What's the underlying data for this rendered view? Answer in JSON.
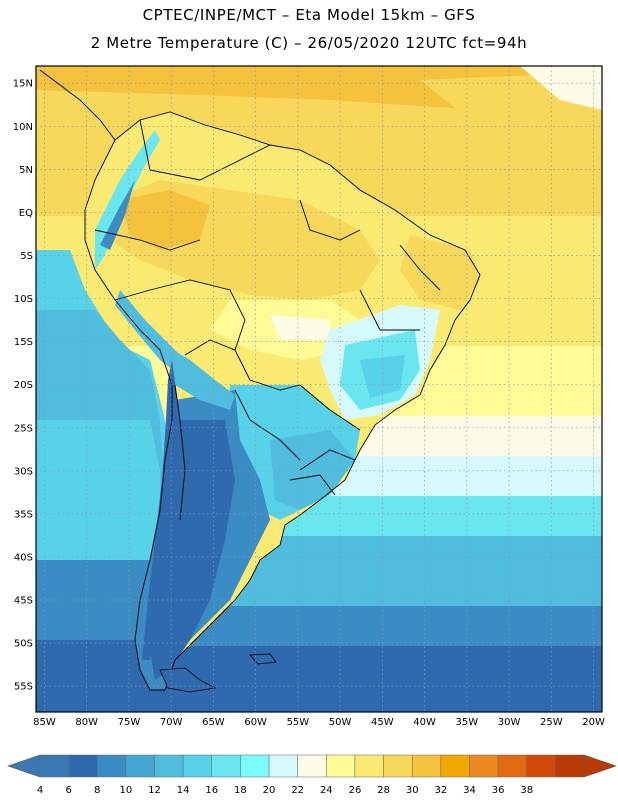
{
  "header": {
    "line1": "CPTEC/INPE/MCT –   Eta Model 15km – GFS",
    "line2": "2 Metre Temperature (C) – 26/05/2020 12UTC fct=94h"
  },
  "map": {
    "lon_range": [
      -86,
      -19
    ],
    "lat_range": [
      -58,
      17
    ],
    "lat_ticks": [
      "15N",
      "10N",
      "5N",
      "EQ",
      "5S",
      "10S",
      "15S",
      "20S",
      "25S",
      "30S",
      "35S",
      "40S",
      "45S",
      "50S",
      "55S"
    ],
    "lat_values": [
      15,
      10,
      5,
      0,
      -5,
      -10,
      -15,
      -20,
      -25,
      -30,
      -35,
      -40,
      -45,
      -50,
      -55
    ],
    "lon_ticks": [
      "85W",
      "80W",
      "75W",
      "70W",
      "65W",
      "60W",
      "55W",
      "50W",
      "45W",
      "40W",
      "35W",
      "30W",
      "25W",
      "20W"
    ],
    "lon_values": [
      -85,
      -80,
      -75,
      -70,
      -65,
      -60,
      -55,
      -50,
      -45,
      -40,
      -35,
      -30,
      -25,
      -20
    ],
    "gridlines": true
  },
  "colorbar": {
    "labels": [
      "4",
      "6",
      "8",
      "10",
      "12",
      "14",
      "16",
      "18",
      "20",
      "22",
      "24",
      "26",
      "28",
      "30",
      "32",
      "34",
      "36",
      "38"
    ],
    "colors": [
      "#3a78b4",
      "#2f69ae",
      "#3b8cc4",
      "#44a6d2",
      "#50bcde",
      "#58d2e8",
      "#6ae6f0",
      "#7afcfc",
      "#d6fafc",
      "#fdfbe6",
      "#fefa96",
      "#fbea72",
      "#f8d85a",
      "#f4c23c",
      "#f2a800",
      "#ea8a1c",
      "#e26a12",
      "#d24a08",
      "#b83a04"
    ],
    "left_arrow_color": "#3a78b4",
    "right_arrow_color": "#b83a04"
  }
}
